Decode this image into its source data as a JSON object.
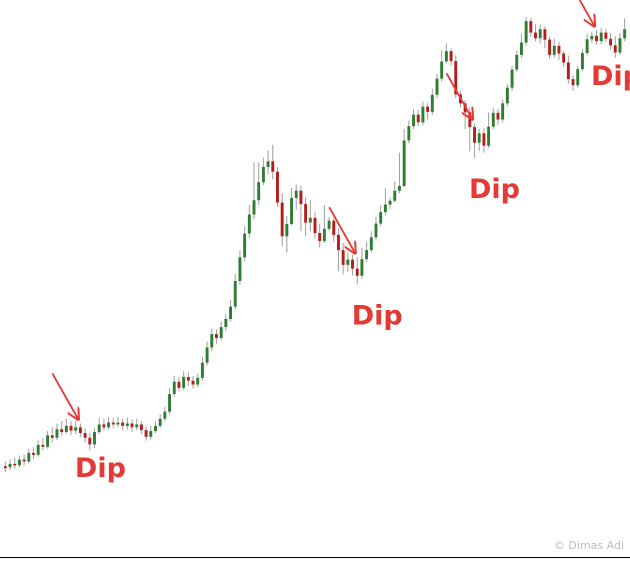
{
  "chart_data": {
    "type": "candlestick",
    "title": "",
    "xlabel": "",
    "ylabel": "",
    "ylim": [
      0,
      100
    ],
    "grid": false,
    "legend": "none",
    "axes_visible": false,
    "colors": {
      "up": "#2e7d32",
      "down": "#b71c1c",
      "wick": "#9e9e9e",
      "annotation": "#e53935",
      "watermark": "#bbbbbb",
      "baseline": "#000000"
    },
    "candles": [
      [
        5,
        4.6,
        6,
        3.8
      ],
      [
        4.8,
        5.5,
        6.5,
        4.2
      ],
      [
        5.5,
        5.2,
        6.8,
        4.5
      ],
      [
        5.2,
        6.4,
        7.2,
        4.8
      ],
      [
        6.4,
        6,
        7.5,
        5.2
      ],
      [
        6,
        7.8,
        8.7,
        5.6
      ],
      [
        7.8,
        7.4,
        9,
        6.5
      ],
      [
        7.4,
        9.5,
        10.5,
        7
      ],
      [
        9.5,
        9.1,
        11,
        8.3
      ],
      [
        9.1,
        11.5,
        12.4,
        8.7
      ],
      [
        11.5,
        11,
        13.2,
        10
      ],
      [
        11,
        12.8,
        14,
        10.5
      ],
      [
        12.8,
        12.2,
        14.5,
        11.5
      ],
      [
        12.2,
        13.5,
        15,
        11.8
      ],
      [
        13.5,
        12.5,
        14.5,
        11.5
      ],
      [
        12.5,
        13.2,
        14.6,
        11.8
      ],
      [
        13.2,
        12,
        14,
        11.2
      ],
      [
        12,
        11,
        13,
        10
      ],
      [
        11,
        9.6,
        12,
        8.3
      ],
      [
        9.6,
        12.2,
        13,
        8.8
      ],
      [
        12.2,
        13.8,
        15.2,
        11.8
      ],
      [
        13.8,
        13.2,
        15,
        12.5
      ],
      [
        13.2,
        14.2,
        15.3,
        12.7
      ],
      [
        14.2,
        13.8,
        15.2,
        13
      ],
      [
        13.8,
        14.2,
        15.4,
        13.2
      ],
      [
        14.2,
        13.5,
        15,
        12.6
      ],
      [
        13.5,
        14,
        15.2,
        12.8
      ],
      [
        14,
        13.2,
        14.8,
        12.3
      ],
      [
        13.2,
        13.8,
        15,
        12.6
      ],
      [
        13.8,
        12.6,
        14.5,
        11.8
      ],
      [
        12.6,
        11.2,
        13.4,
        10.4
      ],
      [
        11.2,
        12.4,
        13.5,
        10.6
      ],
      [
        12.4,
        13.5,
        14.5,
        12
      ],
      [
        13.5,
        15,
        16,
        13
      ],
      [
        15,
        16.5,
        17.5,
        14.5
      ],
      [
        16.5,
        20.2,
        21.5,
        16
      ],
      [
        20.2,
        22.8,
        24,
        19.6
      ],
      [
        22.8,
        21.5,
        23.8,
        20.8
      ],
      [
        21.5,
        23.8,
        25,
        21
      ],
      [
        23.8,
        23,
        24.8,
        21.9
      ],
      [
        23,
        22.2,
        24,
        21.3
      ],
      [
        22.2,
        23.6,
        24.5,
        21.6
      ],
      [
        23.6,
        26.8,
        28,
        23
      ],
      [
        26.8,
        30,
        31.2,
        26.2
      ],
      [
        30,
        32.8,
        34,
        29.2
      ],
      [
        32.8,
        32,
        33.8,
        30.8
      ],
      [
        32,
        34.3,
        35.5,
        31.5
      ],
      [
        34.3,
        36,
        37,
        33.5
      ],
      [
        36,
        38.6,
        40,
        35.5
      ],
      [
        38.6,
        44,
        45.5,
        38
      ],
      [
        44,
        49,
        50.5,
        43.2
      ],
      [
        49,
        54,
        55.5,
        48.2
      ],
      [
        54,
        58,
        60,
        53
      ],
      [
        58,
        61,
        69,
        57
      ],
      [
        61,
        64.8,
        69,
        60
      ],
      [
        64.8,
        68,
        70,
        64.2
      ],
      [
        68,
        69.2,
        71.5,
        66.5
      ],
      [
        69.2,
        67,
        72.7,
        65.4
      ],
      [
        67,
        60.5,
        68,
        59.6
      ],
      [
        60.5,
        53.4,
        62.5,
        51.3
      ],
      [
        53.4,
        56,
        57.7,
        50
      ],
      [
        56,
        61.5,
        63.6,
        55.7
      ],
      [
        61.5,
        63,
        64.3,
        59
      ],
      [
        63,
        60.2,
        64,
        54.5
      ],
      [
        60.2,
        56.3,
        61.7,
        53.4
      ],
      [
        56.3,
        57.3,
        61,
        54.5
      ],
      [
        57.3,
        54.1,
        58.5,
        53
      ],
      [
        54.1,
        52.4,
        56,
        51
      ],
      [
        52.4,
        55,
        60,
        52
      ],
      [
        55,
        56.7,
        57.5,
        54.5
      ],
      [
        56.7,
        53.7,
        57.2,
        52.3
      ],
      [
        53.7,
        50.5,
        55,
        46
      ],
      [
        50.5,
        47.4,
        52,
        45.4
      ],
      [
        47.4,
        48.5,
        50,
        46
      ],
      [
        48.5,
        46.6,
        49.5,
        45.2
      ],
      [
        46.6,
        45.1,
        49,
        43.3
      ],
      [
        45.1,
        48.6,
        51,
        44.5
      ],
      [
        48.6,
        50.5,
        52.2,
        48
      ],
      [
        50.5,
        53.2,
        54.5,
        50
      ],
      [
        53.2,
        56.1,
        57.5,
        52.5
      ],
      [
        56.1,
        58.5,
        60,
        55.5
      ],
      [
        58.5,
        60.1,
        63.5,
        57.8
      ],
      [
        60.1,
        60.9,
        61.5,
        59.2
      ],
      [
        60.9,
        63,
        65,
        60.5
      ],
      [
        63,
        64,
        71,
        62.5
      ],
      [
        64,
        73.6,
        76,
        63.8
      ],
      [
        73.6,
        76.6,
        77.8,
        73
      ],
      [
        76.6,
        79,
        80.2,
        76
      ],
      [
        79,
        77.4,
        80,
        76.6
      ],
      [
        77.4,
        80.7,
        81.8,
        76.8
      ],
      [
        80.7,
        79.6,
        81.5,
        78
      ],
      [
        79.6,
        83.2,
        84.5,
        79
      ],
      [
        83.2,
        86.6,
        87.6,
        82.5
      ],
      [
        86.6,
        90.2,
        92.5,
        86
      ],
      [
        90.2,
        92.4,
        94,
        89.8
      ],
      [
        92.4,
        90.3,
        93,
        89.4
      ],
      [
        90.3,
        83.3,
        91.5,
        82.5
      ],
      [
        83.3,
        81.4,
        84,
        80.5
      ],
      [
        81.4,
        79.5,
        82,
        76
      ],
      [
        79.5,
        76.4,
        80.5,
        71.3
      ],
      [
        76.4,
        73.1,
        77.2,
        69.9
      ],
      [
        73.1,
        75.1,
        76,
        71.4
      ],
      [
        75.1,
        72.5,
        76.2,
        71
      ],
      [
        72.5,
        76.5,
        79.5,
        72
      ],
      [
        76.5,
        79.4,
        80.5,
        76
      ],
      [
        79.4,
        78,
        80.2,
        76.8
      ],
      [
        78,
        81.4,
        82.2,
        77.4
      ],
      [
        81.4,
        84.7,
        85.5,
        80.8
      ],
      [
        84.7,
        88.5,
        89.3,
        84
      ],
      [
        88.5,
        91.6,
        92.5,
        88
      ],
      [
        91.6,
        94.2,
        96,
        91
      ],
      [
        94.2,
        98.7,
        99.5,
        93.5
      ],
      [
        98.7,
        96.3,
        99.4,
        95.4
      ],
      [
        96.3,
        95.1,
        98,
        94.5
      ],
      [
        95.1,
        97,
        98,
        94
      ],
      [
        97,
        94.8,
        97.6,
        93
      ],
      [
        94.8,
        91.6,
        95.5,
        90.7
      ],
      [
        91.6,
        93.5,
        95,
        91
      ],
      [
        93.5,
        91.9,
        94.4,
        90.5
      ],
      [
        91.9,
        90,
        92.4,
        89
      ],
      [
        90,
        86.5,
        91.5,
        85.5
      ],
      [
        86.5,
        85.2,
        87.3,
        84
      ],
      [
        85.2,
        88.6,
        89.2,
        84.7
      ],
      [
        88.6,
        92,
        92.8,
        88.2
      ],
      [
        92,
        94.9,
        96,
        91.5
      ],
      [
        94.9,
        95.6,
        96.5,
        94.2
      ],
      [
        95.6,
        94.5,
        96.8,
        93.7
      ],
      [
        94.5,
        96.3,
        97.3,
        93.8
      ],
      [
        96.3,
        95,
        97.1,
        94.4
      ],
      [
        95,
        93.6,
        96.2,
        92.7
      ],
      [
        93.6,
        92.1,
        95.5,
        91
      ],
      [
        92.1,
        95.1,
        96.2,
        91.6
      ],
      [
        95.1,
        97,
        99.3,
        94.5
      ]
    ],
    "annotations": [
      {
        "text": "Dip",
        "candle": 16
      },
      {
        "text": "Dip",
        "candle": 75
      },
      {
        "text": "Dip",
        "candle": 100
      },
      {
        "text": "Dip",
        "candle": 126
      }
    ],
    "watermark": "© Dimas Adi"
  }
}
